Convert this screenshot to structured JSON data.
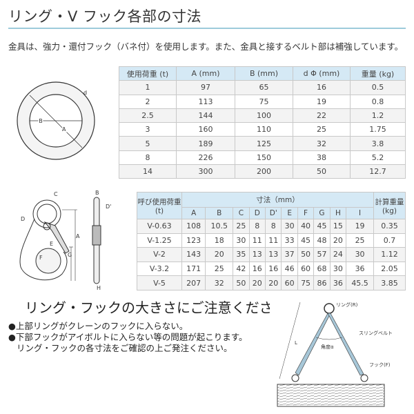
{
  "title": "リング・V フック各部の寸法",
  "intro": "金具は、強力・還付フック（バネ付）を使用します。また、金具と接するベルト部は補強しています。",
  "ring_table": {
    "headers": [
      "使用荷重 (t)",
      "A (mm)",
      "B (mm)",
      "d Φ (mm)",
      "重量 (kg)"
    ],
    "rows": [
      [
        "1",
        "97",
        "65",
        "16",
        "0.5"
      ],
      [
        "2",
        "113",
        "75",
        "19",
        "0.8"
      ],
      [
        "2.5",
        "144",
        "100",
        "22",
        "1.2"
      ],
      [
        "3",
        "160",
        "110",
        "25",
        "1.75"
      ],
      [
        "5",
        "189",
        "125",
        "32",
        "3.8"
      ],
      [
        "8",
        "226",
        "150",
        "38",
        "5.2"
      ],
      [
        "14",
        "300",
        "200",
        "50",
        "12.7"
      ]
    ]
  },
  "ring_diagram": {
    "labels": [
      "d",
      "B",
      "A"
    ]
  },
  "hook_table": {
    "load_header": "呼び使用荷重",
    "load_unit": "(t)",
    "dim_header": "寸法（mm）",
    "weight_header": "計算重量",
    "weight_unit": "(kg)",
    "dims": [
      "A",
      "B",
      "C",
      "D",
      "D'",
      "E",
      "F",
      "G",
      "H",
      "I"
    ],
    "rows": [
      [
        "V-0.63",
        "108",
        "10.5",
        "25",
        "8",
        "8",
        "30",
        "40",
        "45",
        "15",
        "19",
        "0.35"
      ],
      [
        "V-1.25",
        "123",
        "18",
        "30",
        "11",
        "11",
        "33",
        "45",
        "48",
        "20",
        "25",
        "0.7"
      ],
      [
        "V-2",
        "143",
        "20",
        "35",
        "13",
        "13",
        "37",
        "50",
        "57",
        "24",
        "30",
        "1.12"
      ],
      [
        "V-3.2",
        "171",
        "25",
        "42",
        "16",
        "16",
        "46",
        "60",
        "68",
        "30",
        "36",
        "2.05"
      ],
      [
        "V-5",
        "207",
        "32",
        "50",
        "20",
        "20",
        "60",
        "75",
        "86",
        "36",
        "45.5",
        "3.85"
      ]
    ]
  },
  "hook_diagram": {
    "labels": [
      "C",
      "D",
      "E",
      "F",
      "G",
      "A",
      "B",
      "D'",
      "H"
    ]
  },
  "notice": {
    "heading": "リング・フックの大きさにご注意ください",
    "bullets": [
      "●上部リングがクレーンのフックに入らない。",
      "●下部フックがアイボルトに入らない等の問題が起こります。"
    ],
    "note": "リング・フックの各寸法をご確認の上ご発注ください。"
  },
  "sling_diagram": {
    "ring": "リング(R)",
    "belt": "スリングベルト",
    "angle": "角度α",
    "hook": "フック(F)",
    "length": "L"
  }
}
